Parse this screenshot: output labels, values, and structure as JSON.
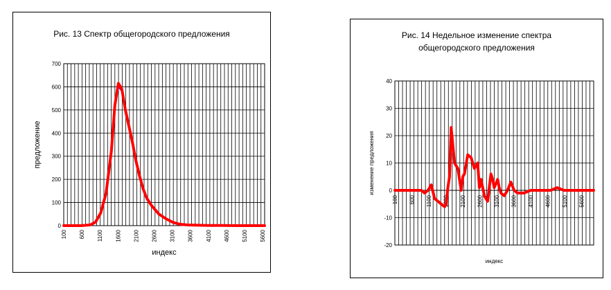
{
  "chart_data": [
    {
      "type": "line",
      "title": "Рис. 13 Спектр общегородского предложения",
      "xlabel": "индекс",
      "ylabel": "предложение",
      "ylim": [
        0,
        700
      ],
      "yticks": [
        0,
        100,
        200,
        300,
        400,
        500,
        600,
        700
      ],
      "xlim": [
        100,
        5800
      ],
      "xtick_labels": [
        "100",
        "600",
        "1100",
        "1600",
        "2100",
        "2600",
        "3100",
        "3600",
        "4100",
        "4600",
        "5100",
        "5600"
      ],
      "grid": true,
      "series": [
        {
          "color": "#ff0000",
          "x": [
            100,
            600,
            850,
            1000,
            1150,
            1300,
            1450,
            1550,
            1650,
            1750,
            1850,
            1950,
            2050,
            2150,
            2250,
            2350,
            2450,
            2600,
            2800,
            3000,
            3200,
            3400,
            3600,
            3800,
            4200,
            4600,
            5000,
            5400,
            5800
          ],
          "y": [
            0,
            0,
            3,
            15,
            55,
            140,
            320,
            520,
            615,
            590,
            500,
            430,
            360,
            280,
            215,
            160,
            120,
            85,
            50,
            30,
            14,
            6,
            3,
            2,
            1,
            1,
            0,
            0,
            0
          ]
        },
        {
          "color": "#0000cc",
          "x": [
            100,
            600,
            850,
            1000,
            1150,
            1300,
            1450,
            1550,
            1650,
            1750,
            1850,
            1950,
            2050,
            2150,
            2250,
            2350,
            2450,
            2600,
            2800,
            3000,
            3200,
            3400,
            3600,
            3800,
            4200,
            4600,
            5000,
            5400,
            5800
          ],
          "y": [
            0,
            0,
            4,
            18,
            60,
            150,
            330,
            530,
            600,
            580,
            495,
            425,
            350,
            270,
            205,
            150,
            112,
            80,
            46,
            28,
            12,
            5,
            2,
            1,
            1,
            0,
            0,
            0,
            0
          ]
        }
      ]
    },
    {
      "type": "line",
      "title": "Рис. 14 Недельное изменение спектра общегородского предложения",
      "title_lines": [
        "Рис. 14 Недельное изменение спектра",
        "общегородского предложения"
      ],
      "xlabel": "индекс",
      "ylabel": "изменение предложения",
      "ylim": [
        -20,
        40
      ],
      "yticks": [
        -20,
        -10,
        0,
        10,
        20,
        30,
        40
      ],
      "xlim": [
        100,
        6100
      ],
      "xtick_labels": [
        "100",
        "600",
        "1100",
        "1600",
        "2100",
        "2600",
        "3100",
        "3600",
        "4100",
        "4600",
        "5100",
        "5600"
      ],
      "grid": true,
      "series": [
        {
          "color": "#ff0000",
          "x": [
            100,
            400,
            600,
            900,
            1000,
            1100,
            1200,
            1300,
            1400,
            1500,
            1600,
            1650,
            1700,
            1750,
            1800,
            1900,
            2000,
            2100,
            2150,
            2200,
            2300,
            2400,
            2500,
            2600,
            2650,
            2700,
            2800,
            2900,
            3000,
            3050,
            3100,
            3200,
            3250,
            3300,
            3400,
            3500,
            3600,
            3700,
            3800,
            3900,
            4000,
            4200,
            4400,
            4600,
            4800,
            5000,
            5200,
            5400,
            5600,
            5800,
            6100
          ],
          "y": [
            0,
            0,
            0,
            0,
            -1,
            0,
            2,
            -3,
            -4,
            -5,
            -6,
            -5,
            1,
            5,
            23,
            10,
            8,
            0,
            5,
            6,
            13,
            12,
            8,
            10,
            1,
            4,
            -2,
            -4,
            6,
            4,
            1,
            4,
            1,
            -1,
            -2,
            0,
            3,
            0,
            -1,
            -1,
            -1,
            0,
            0,
            0,
            0,
            1,
            0,
            0,
            0,
            0,
            0
          ]
        }
      ]
    }
  ]
}
